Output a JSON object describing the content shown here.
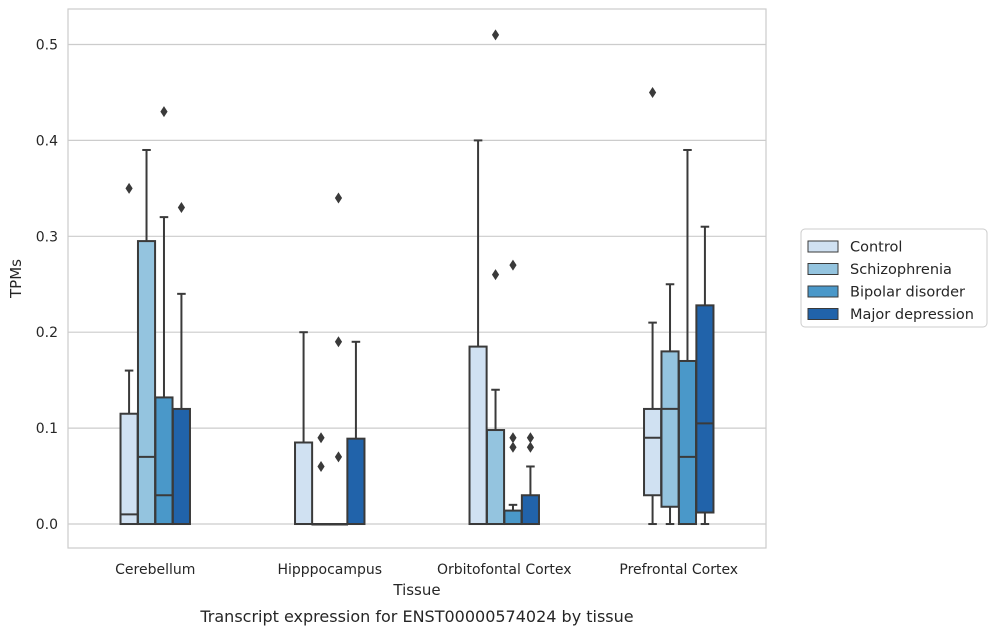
{
  "caption": "Transcript expression for ENST00000574024 by tissue",
  "chart_data": {
    "type": "box",
    "title": "",
    "xlabel": "Tissue",
    "ylabel": "TPMs",
    "ylim": [
      -0.025,
      0.537
    ],
    "yticks": [
      0.0,
      0.1,
      0.2,
      0.3,
      0.4,
      0.5
    ],
    "ytick_labels": [
      "0.0",
      "0.1",
      "0.2",
      "0.3",
      "0.4",
      "0.5"
    ],
    "grid": "horizontal",
    "legend_position": "right",
    "categories": [
      "Cerebellum",
      "Hipppocampus",
      "Orbitofontal Cortex",
      "Prefrontal Cortex"
    ],
    "series": [
      {
        "name": "Control",
        "color": "#d0e1f2",
        "boxes": [
          {
            "whislo": 0.0,
            "q1": 0.0,
            "med": 0.01,
            "q3": 0.115,
            "whishi": 0.16,
            "fliers": [
              0.35
            ]
          },
          {
            "whislo": 0.0,
            "q1": 0.0,
            "med": 0.0,
            "q3": 0.085,
            "whishi": 0.2,
            "fliers": []
          },
          {
            "whislo": 0.0,
            "q1": 0.0,
            "med": 0.0,
            "q3": 0.185,
            "whishi": 0.4,
            "fliers": []
          },
          {
            "whislo": 0.0,
            "q1": 0.03,
            "med": 0.09,
            "q3": 0.12,
            "whishi": 0.21,
            "fliers": [
              0.45
            ]
          }
        ]
      },
      {
        "name": "Schizophrenia",
        "color": "#94c4df",
        "boxes": [
          {
            "whislo": 0.0,
            "q1": 0.0,
            "med": 0.07,
            "q3": 0.295,
            "whishi": 0.39,
            "fliers": []
          },
          {
            "whislo": 0.0,
            "q1": 0.0,
            "med": 0.0,
            "q3": 0.0,
            "whishi": 0.0,
            "fliers": [
              0.09,
              0.06
            ]
          },
          {
            "whislo": 0.0,
            "q1": 0.0,
            "med": 0.0,
            "q3": 0.098,
            "whishi": 0.14,
            "fliers": [
              0.51,
              0.26
            ]
          },
          {
            "whislo": 0.0,
            "q1": 0.018,
            "med": 0.12,
            "q3": 0.18,
            "whishi": 0.25,
            "fliers": []
          }
        ]
      },
      {
        "name": "Bipolar disorder",
        "color": "#4a98c9",
        "boxes": [
          {
            "whislo": 0.0,
            "q1": 0.0,
            "med": 0.03,
            "q3": 0.132,
            "whishi": 0.32,
            "fliers": [
              0.43
            ]
          },
          {
            "whislo": 0.0,
            "q1": 0.0,
            "med": 0.0,
            "q3": 0.0,
            "whishi": 0.0,
            "fliers": [
              0.34,
              0.19,
              0.07
            ]
          },
          {
            "whislo": 0.0,
            "q1": 0.0,
            "med": 0.0,
            "q3": 0.014,
            "whishi": 0.02,
            "fliers": [
              0.27,
              0.09,
              0.08
            ]
          },
          {
            "whislo": 0.0,
            "q1": 0.0,
            "med": 0.07,
            "q3": 0.17,
            "whishi": 0.39,
            "fliers": []
          }
        ]
      },
      {
        "name": "Major depression",
        "color": "#2163aa",
        "boxes": [
          {
            "whislo": 0.0,
            "q1": 0.0,
            "med": 0.0,
            "q3": 0.12,
            "whishi": 0.24,
            "fliers": [
              0.33
            ]
          },
          {
            "whislo": 0.0,
            "q1": 0.0,
            "med": 0.0,
            "q3": 0.089,
            "whishi": 0.19,
            "fliers": []
          },
          {
            "whislo": 0.0,
            "q1": 0.0,
            "med": 0.0,
            "q3": 0.03,
            "whishi": 0.06,
            "fliers": [
              0.09,
              0.08
            ]
          },
          {
            "whislo": 0.0,
            "q1": 0.012,
            "med": 0.105,
            "q3": 0.228,
            "whishi": 0.31,
            "fliers": []
          }
        ]
      }
    ]
  }
}
